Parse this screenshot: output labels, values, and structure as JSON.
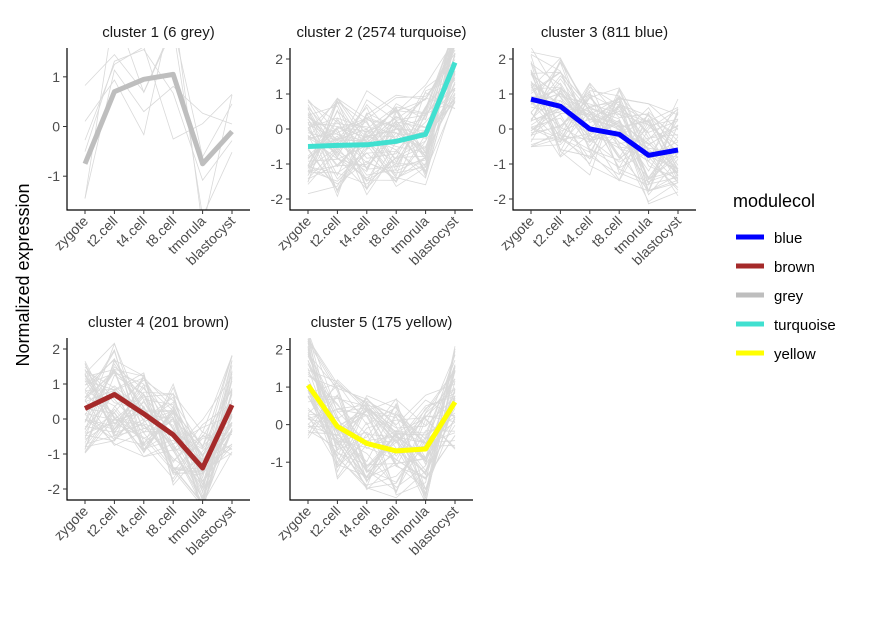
{
  "chart_data": {
    "type": "line",
    "ylabel": "Normalized expression",
    "categories": [
      "zygote",
      "t2.cell",
      "t4.cell",
      "t8.cell",
      "tmorula",
      "blastocyst"
    ],
    "background_line_color": "#d9d9d9",
    "panels": [
      {
        "title": "cluster 1 (6 grey)",
        "color": "#bebebe",
        "ylim": [
          -1.6,
          1.5
        ],
        "yticks": [
          -1,
          0,
          1
        ],
        "mean": [
          -0.75,
          0.7,
          0.95,
          1.05,
          -0.75,
          -0.1
        ]
      },
      {
        "title": "cluster 2 (2574 turquoise)",
        "color": "#40e0d0",
        "ylim": [
          -2.2,
          2.2
        ],
        "yticks": [
          -2,
          -1,
          0,
          1,
          2
        ],
        "mean": [
          -0.5,
          -0.47,
          -0.45,
          -0.35,
          -0.15,
          1.9
        ]
      },
      {
        "title": "cluster 3 (811 blue)",
        "color": "#0000ff",
        "ylim": [
          -2.2,
          2.2
        ],
        "yticks": [
          -2,
          -1,
          0,
          1,
          2
        ],
        "mean": [
          0.85,
          0.65,
          0.0,
          -0.15,
          -0.75,
          -0.6
        ]
      },
      {
        "title": "cluster 4 (201 brown)",
        "color": "#a52a2a",
        "ylim": [
          -2.2,
          2.2
        ],
        "yticks": [
          -2,
          -1,
          0,
          1,
          2
        ],
        "mean": [
          0.3,
          0.7,
          0.15,
          -0.45,
          -1.4,
          0.4
        ]
      },
      {
        "title": "cluster 5 (175 yellow)",
        "color": "#ffff00",
        "ylim": [
          -1.9,
          2.2
        ],
        "yticks": [
          -1,
          0,
          1,
          2
        ],
        "mean": [
          1.05,
          -0.05,
          -0.5,
          -0.7,
          -0.65,
          0.6
        ]
      }
    ],
    "legend": {
      "title": "modulecol",
      "position": "right",
      "entries": [
        {
          "label": "blue",
          "color": "#0000ff"
        },
        {
          "label": "brown",
          "color": "#a52a2a"
        },
        {
          "label": "grey",
          "color": "#bebebe"
        },
        {
          "label": "turquoise",
          "color": "#40e0d0"
        },
        {
          "label": "yellow",
          "color": "#ffff00"
        }
      ]
    }
  }
}
